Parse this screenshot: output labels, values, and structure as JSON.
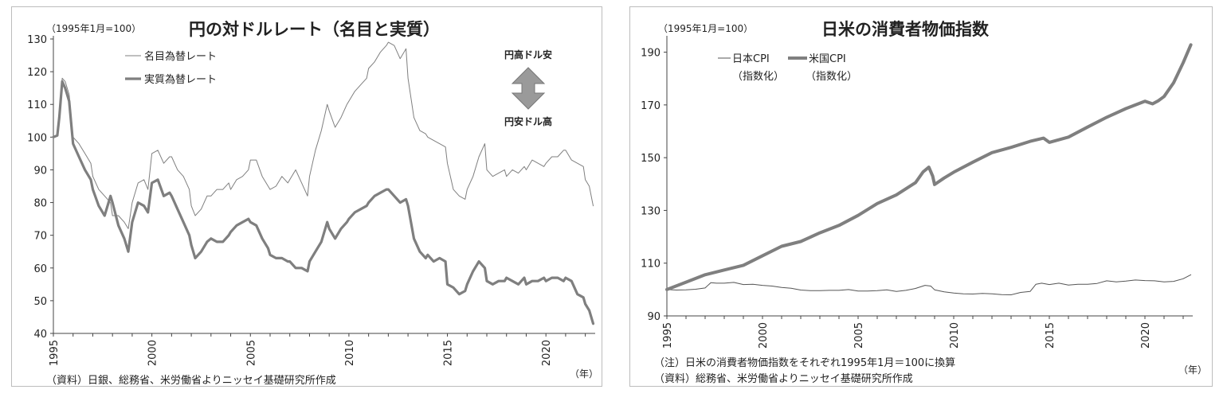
{
  "chart_data": [
    {
      "type": "line",
      "title": "円の対ドルレート（名目と実質）",
      "unit_label": "（1995年1月=100）",
      "x_unit": "（年）",
      "source": "（資料）日銀、総務省、米労働省よりニッセイ基礎研究所作成",
      "ylim": [
        40,
        130
      ],
      "yticks": [
        "130",
        "120",
        "110",
        "100",
        "90",
        "80",
        "70",
        "60",
        "50",
        "40"
      ],
      "xlim": [
        1995,
        2022.5
      ],
      "xticks": [
        "1995",
        "2000",
        "2005",
        "2010",
        "2015",
        "2020"
      ],
      "annotation_top": "円高ドル安",
      "annotation_bottom": "円安ドル高",
      "series": [
        {
          "name": "名目為替レート",
          "color": "#7f7f7f",
          "x": [
            1995,
            1995.2,
            1995.3,
            1995.45,
            1995.6,
            1995.8,
            1996,
            1996.3,
            1996.6,
            1996.9,
            1997,
            1997.3,
            1997.6,
            1997.9,
            1998,
            1998.3,
            1998.6,
            1998.8,
            1999,
            1999.3,
            1999.6,
            1999.8,
            2000,
            2000.3,
            2000.6,
            2000.9,
            2001,
            2001.3,
            2001.6,
            2001.9,
            2002,
            2002.2,
            2002.5,
            2002.8,
            2003,
            2003.3,
            2003.6,
            2003.9,
            2004,
            2004.3,
            2004.6,
            2004.9,
            2005,
            2005.3,
            2005.6,
            2005.9,
            2006,
            2006.3,
            2006.6,
            2006.9,
            2007,
            2007.3,
            2007.6,
            2007.9,
            2008,
            2008.3,
            2008.6,
            2008.9,
            2009,
            2009.3,
            2009.6,
            2009.9,
            2010,
            2010.3,
            2010.6,
            2010.9,
            2011,
            2011.3,
            2011.6,
            2011.9,
            2012,
            2012.3,
            2012.6,
            2012.9,
            2013,
            2013.3,
            2013.6,
            2013.9,
            2014,
            2014.3,
            2014.6,
            2014.9,
            2015,
            2015.3,
            2015.6,
            2015.9,
            2016,
            2016.3,
            2016.6,
            2016.9,
            2017,
            2017.3,
            2017.6,
            2017.9,
            2018,
            2018.3,
            2018.6,
            2018.9,
            2019,
            2019.3,
            2019.6,
            2019.9,
            2020,
            2020.3,
            2020.6,
            2020.9,
            2021,
            2021.3,
            2021.6,
            2021.9,
            2022,
            2022.2,
            2022.4
          ],
          "values": [
            100,
            100.5,
            107,
            118,
            117,
            113,
            100,
            98,
            95,
            92,
            88,
            84,
            82,
            80,
            76,
            76,
            74,
            72,
            80,
            86,
            87,
            84,
            95,
            96,
            92,
            94,
            94,
            90,
            88,
            84,
            79,
            76,
            78,
            82,
            82,
            84,
            84,
            86,
            84,
            87,
            88,
            90,
            93,
            93,
            88,
            85,
            84,
            85,
            88,
            86,
            87,
            90,
            86,
            82,
            88,
            96,
            102,
            110,
            108,
            103,
            106,
            110,
            111,
            114,
            116,
            118,
            121,
            123,
            126,
            128,
            129,
            128,
            124,
            127,
            118,
            106,
            102,
            101,
            100,
            99,
            98,
            97,
            92,
            84,
            82,
            81,
            84,
            88,
            94,
            98,
            90,
            88,
            89,
            90,
            88,
            90,
            89,
            91,
            90,
            93,
            92,
            91,
            92,
            94,
            94,
            96,
            96,
            93,
            92,
            91,
            87,
            85,
            79
          ]
        },
        {
          "name": "実質為替レート",
          "color": "#7f7f7f",
          "x": [
            1995,
            1995.2,
            1995.3,
            1995.45,
            1995.6,
            1995.8,
            1996,
            1996.3,
            1996.6,
            1996.9,
            1997,
            1997.3,
            1997.6,
            1997.9,
            1998,
            1998.3,
            1998.6,
            1998.8,
            1999,
            1999.3,
            1999.6,
            1999.8,
            2000,
            2000.3,
            2000.6,
            2000.9,
            2001,
            2001.3,
            2001.6,
            2001.9,
            2002,
            2002.2,
            2002.5,
            2002.8,
            2003,
            2003.3,
            2003.6,
            2003.9,
            2004,
            2004.3,
            2004.6,
            2004.9,
            2005,
            2005.3,
            2005.6,
            2005.9,
            2006,
            2006.3,
            2006.6,
            2006.9,
            2007,
            2007.3,
            2007.6,
            2007.9,
            2008,
            2008.3,
            2008.6,
            2008.9,
            2009,
            2009.3,
            2009.6,
            2009.9,
            2010,
            2010.3,
            2010.6,
            2010.9,
            2011,
            2011.3,
            2011.6,
            2011.9,
            2012,
            2012.3,
            2012.6,
            2012.9,
            2013,
            2013.3,
            2013.6,
            2013.9,
            2014,
            2014.3,
            2014.6,
            2014.9,
            2015,
            2015.3,
            2015.6,
            2015.9,
            2016,
            2016.3,
            2016.6,
            2016.9,
            2017,
            2017.3,
            2017.6,
            2017.9,
            2018,
            2018.3,
            2018.6,
            2018.9,
            2019,
            2019.3,
            2019.6,
            2019.9,
            2020,
            2020.3,
            2020.6,
            2020.9,
            2021,
            2021.3,
            2021.6,
            2021.9,
            2022,
            2022.2,
            2022.4
          ],
          "values": [
            100,
            100.5,
            106,
            117,
            115,
            111,
            98,
            94,
            90,
            87,
            84,
            79,
            76,
            82,
            80,
            73,
            69,
            65,
            74,
            80,
            79,
            77,
            86,
            87,
            82,
            83,
            82,
            78,
            74,
            70,
            67,
            63,
            65,
            68,
            69,
            68,
            68,
            70,
            71,
            73,
            74,
            75,
            74,
            73,
            69,
            66,
            64,
            63,
            63,
            62,
            62,
            60,
            60,
            59,
            62,
            65,
            68,
            74,
            72,
            69,
            72,
            74,
            75,
            77,
            78,
            79,
            80,
            82,
            83,
            84,
            84,
            82,
            80,
            81,
            79,
            69,
            65,
            63,
            64,
            62,
            63,
            62,
            55,
            54,
            52,
            53,
            55,
            59,
            62,
            60,
            56,
            55,
            56,
            56,
            57,
            56,
            55,
            57,
            55,
            56,
            56,
            57,
            56,
            57,
            57,
            56,
            57,
            56,
            52,
            51,
            49,
            47,
            43
          ]
        }
      ]
    },
    {
      "type": "line",
      "title": "日米の消費者物価指数",
      "unit_label": "（1995年1月=100）",
      "x_unit": "（年）",
      "note": "（注）日米の消費者物価指数をそれぞれ1995年1月＝100に換算",
      "source": "（資料）総務省、米労働省よりニッセイ基礎研究所作成",
      "ylim": [
        90,
        195
      ],
      "yticks": [
        "190",
        "170",
        "150",
        "130",
        "110",
        "90"
      ],
      "xlim": [
        1995,
        2022.5
      ],
      "xticks": [
        "1995",
        "2000",
        "2005",
        "2010",
        "2015",
        "2020"
      ],
      "series": [
        {
          "name": "日本CPI",
          "sub": "（指数化）",
          "color": "#555555",
          "x": [
            1995,
            1995.5,
            1996,
            1996.5,
            1997,
            1997.3,
            1997.6,
            1998,
            1998.5,
            1999,
            1999.5,
            2000,
            2000.5,
            2001,
            2001.5,
            2002,
            2002.5,
            2003,
            2003.5,
            2004,
            2004.5,
            2005,
            2005.5,
            2006,
            2006.5,
            2007,
            2007.5,
            2008,
            2008.5,
            2008.8,
            2009,
            2009.5,
            2010,
            2010.5,
            2011,
            2011.5,
            2012,
            2012.5,
            2013,
            2013.5,
            2014,
            2014.3,
            2014.6,
            2015,
            2015.5,
            2016,
            2016.5,
            2017,
            2017.5,
            2018,
            2018.5,
            2019,
            2019.5,
            2020,
            2020.5,
            2021,
            2021.5,
            2022,
            2022.4
          ],
          "values": [
            100,
            99.8,
            99.9,
            100.1,
            100.6,
            102.6,
            102.4,
            102.4,
            102.7,
            101.9,
            102.0,
            101.6,
            101.3,
            100.8,
            100.5,
            99.8,
            99.6,
            99.6,
            99.7,
            99.7,
            100.0,
            99.4,
            99.4,
            99.6,
            99.9,
            99.3,
            99.7,
            100.4,
            101.6,
            101.3,
            99.9,
            99.1,
            98.7,
            98.4,
            98.3,
            98.5,
            98.4,
            98.1,
            98.0,
            98.9,
            99.3,
            102.0,
            102.4,
            101.9,
            102.4,
            101.7,
            102.0,
            102.0,
            102.3,
            103.3,
            102.9,
            103.2,
            103.6,
            103.4,
            103.3,
            102.9,
            103.1,
            104.1,
            105.6
          ]
        },
        {
          "name": "米国CPI",
          "sub": "（指数化）",
          "color": "#7f7f7f",
          "x": [
            1995,
            1996,
            1997,
            1998,
            1999,
            2000,
            2001,
            2002,
            2003,
            2004,
            2005,
            2006,
            2007,
            2008,
            2008.4,
            2008.7,
            2008.9,
            2009,
            2009.5,
            2010,
            2011,
            2012,
            2013,
            2014,
            2014.7,
            2015,
            2016,
            2017,
            2018,
            2019,
            2020,
            2020.4,
            2020.7,
            2021,
            2021.5,
            2022,
            2022.4
          ],
          "values": [
            100,
            102.8,
            105.6,
            107.4,
            109.2,
            112.8,
            116.4,
            118.2,
            121.5,
            124.3,
            128.1,
            132.6,
            135.9,
            140.5,
            144.6,
            146.4,
            143.0,
            139.8,
            142.3,
            144.5,
            148.3,
            151.9,
            153.9,
            156.2,
            157.4,
            155.8,
            157.8,
            161.6,
            165.3,
            168.6,
            171.4,
            170.4,
            171.6,
            173.2,
            178.4,
            186.0,
            192.8
          ]
        }
      ]
    }
  ]
}
